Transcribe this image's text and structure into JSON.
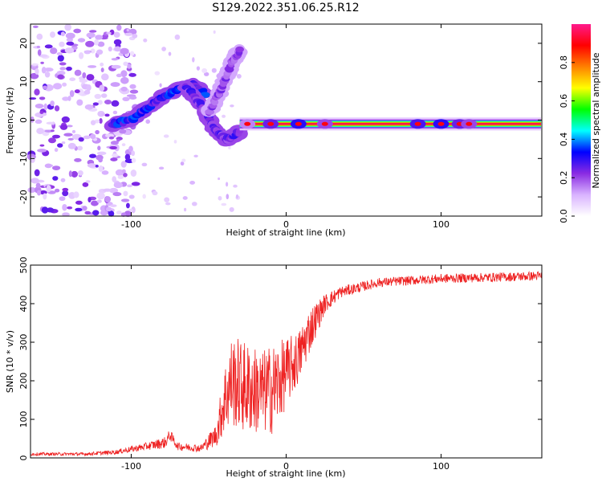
{
  "figure": {
    "title": "S129.2022.351.06.25.R12"
  },
  "chart_data": [
    {
      "type": "heatmap",
      "name": "spectrogram",
      "xlabel": "Height of straight line (km)",
      "ylabel": "Frequency (Hz)",
      "xlim": [
        -165,
        165
      ],
      "ylim": [
        -25,
        25
      ],
      "xticks": [
        -100,
        0,
        100
      ],
      "yticks": [
        -20,
        -10,
        0,
        10,
        20
      ],
      "colorbar": {
        "label": "Normalized spectral amplitude",
        "range": [
          0,
          1
        ],
        "ticks": [
          0.0,
          0.2,
          0.4,
          0.6,
          0.8
        ],
        "colormap": [
          "#ffffff",
          "#d9b3ff",
          "#8a2be2",
          "#0000ff",
          "#00ffff",
          "#00ff00",
          "#ffff00",
          "#ff8000",
          "#ff0000",
          "#ff1a8c"
        ]
      },
      "features": {
        "carrier_line": {
          "x_start": -30,
          "x_end": 165,
          "frequency": -1,
          "amplitude": 0.95
        },
        "rising_branch": [
          {
            "x": -112,
            "f": -1
          },
          {
            "x": -100,
            "f": 0
          },
          {
            "x": -90,
            "f": 3
          },
          {
            "x": -80,
            "f": 6
          },
          {
            "x": -70,
            "f": 8
          },
          {
            "x": -60,
            "f": 9
          },
          {
            "x": -52,
            "f": 7
          }
        ],
        "descending_branch": [
          {
            "x": -65,
            "f": 9
          },
          {
            "x": -55,
            "f": 4
          },
          {
            "x": -45,
            "f": -3
          },
          {
            "x": -38,
            "f": -5
          },
          {
            "x": -30,
            "f": -3
          }
        ],
        "upper_streak": [
          {
            "x": -50,
            "f": 2
          },
          {
            "x": -42,
            "f": 8
          },
          {
            "x": -35,
            "f": 15
          },
          {
            "x": -30,
            "f": 18
          }
        ],
        "noise_region": {
          "x_start": -165,
          "x_end": -105,
          "f_min": -25,
          "f_max": 25
        }
      }
    },
    {
      "type": "line",
      "name": "snr",
      "xlabel": "Height of straight line (km)",
      "ylabel": "SNR (10 * v/v)",
      "xlim": [
        -165,
        165
      ],
      "ylim": [
        0,
        500
      ],
      "xticks": [
        -100,
        0,
        100
      ],
      "yticks": [
        0,
        100,
        200,
        300,
        400,
        500
      ],
      "color": "#ee2222",
      "series": [
        {
          "envelope": [
            {
              "x": -165,
              "mean": 10,
              "spread": 4
            },
            {
              "x": -130,
              "mean": 10,
              "spread": 4
            },
            {
              "x": -110,
              "mean": 15,
              "spread": 6
            },
            {
              "x": -90,
              "mean": 30,
              "spread": 10
            },
            {
              "x": -78,
              "mean": 40,
              "spread": 15
            },
            {
              "x": -75,
              "mean": 60,
              "spread": 15
            },
            {
              "x": -70,
              "mean": 30,
              "spread": 10
            },
            {
              "x": -55,
              "mean": 25,
              "spread": 10
            },
            {
              "x": -45,
              "mean": 60,
              "spread": 30
            },
            {
              "x": -40,
              "mean": 150,
              "spread": 90
            },
            {
              "x": -35,
              "mean": 200,
              "spread": 120
            },
            {
              "x": -25,
              "mean": 180,
              "spread": 120
            },
            {
              "x": -15,
              "mean": 170,
              "spread": 110
            },
            {
              "x": -8,
              "mean": 180,
              "spread": 120
            },
            {
              "x": 0,
              "mean": 220,
              "spread": 90
            },
            {
              "x": 8,
              "mean": 260,
              "spread": 70
            },
            {
              "x": 15,
              "mean": 330,
              "spread": 60
            },
            {
              "x": 25,
              "mean": 400,
              "spread": 25
            },
            {
              "x": 35,
              "mean": 430,
              "spread": 15
            },
            {
              "x": 60,
              "mean": 455,
              "spread": 12
            },
            {
              "x": 100,
              "mean": 465,
              "spread": 12
            },
            {
              "x": 130,
              "mean": 468,
              "spread": 12
            },
            {
              "x": 165,
              "mean": 472,
              "spread": 12
            }
          ]
        }
      ]
    }
  ]
}
